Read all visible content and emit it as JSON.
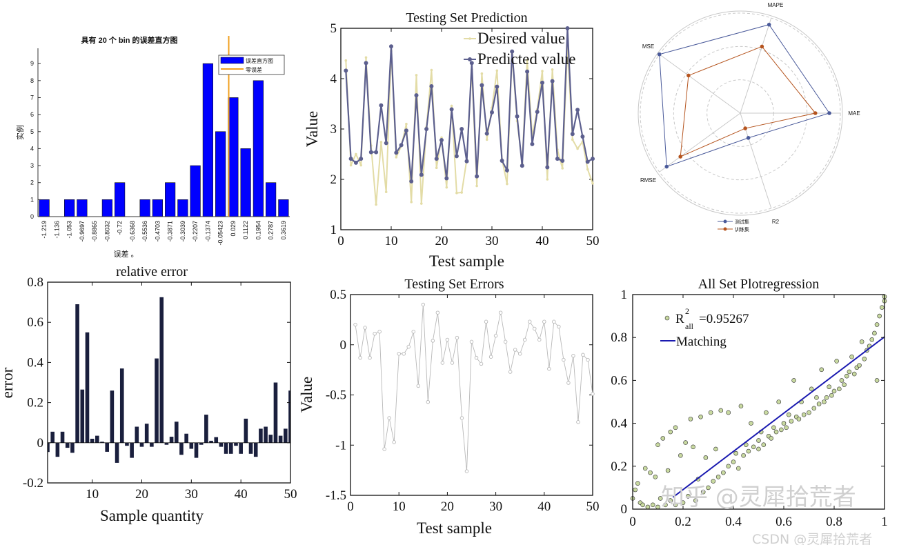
{
  "chart_data": [
    {
      "type": "bar",
      "title": "具有 20 个 bin 的误差直方图",
      "xlabel": "误差 。",
      "ylabel": "实例",
      "categories": [
        "-1.219",
        "-1.136",
        "-1.053",
        "-0.9697",
        "-0.8865",
        "-0.8032",
        "-0.72",
        "-0.6368",
        "-0.5536",
        "-0.4703",
        "-0.3871",
        "-0.3039",
        "-0.2207",
        "-0.1374",
        "-0.05423",
        "0.029",
        "0.1122",
        "0.1954",
        "0.2787",
        "0.3619"
      ],
      "values": [
        1,
        0,
        1,
        1,
        0,
        1,
        2,
        0,
        1,
        1,
        2,
        1,
        3,
        9,
        5,
        7,
        4,
        8,
        2,
        1
      ],
      "yticks": [
        "0",
        "1",
        "2",
        "3",
        "4",
        "5",
        "6",
        "7",
        "8",
        "9"
      ],
      "ylim": [
        0,
        9.9
      ],
      "zero_error": 0,
      "legend": [
        "误差直方图",
        "零误差"
      ],
      "legend_position": "top-right",
      "colors": {
        "bars": "#0000ff",
        "zero_line": "#f0a020"
      }
    },
    {
      "type": "line",
      "title": "Testing Set Prediction",
      "xlabel": "Test sample",
      "ylabel": "Value",
      "xlim": [
        0,
        50
      ],
      "ylim": [
        1,
        5
      ],
      "xticks": [
        "0",
        "10",
        "20",
        "30",
        "40",
        "50"
      ],
      "yticks": [
        "1",
        "2",
        "3",
        "4",
        "5"
      ],
      "legend_position": "top-right",
      "x": [
        1,
        2,
        3,
        4,
        5,
        6,
        7,
        8,
        9,
        10,
        11,
        12,
        13,
        14,
        15,
        16,
        17,
        18,
        19,
        20,
        21,
        22,
        23,
        24,
        25,
        26,
        27,
        28,
        29,
        30,
        31,
        32,
        33,
        34,
        35,
        36,
        37,
        38,
        39,
        40,
        41,
        42,
        43,
        44,
        45,
        46,
        47,
        48,
        49,
        50
      ],
      "series": [
        {
          "name": "Desired value",
          "color": "#e3dca6",
          "values": [
            4.36,
            2.28,
            2.5,
            2.28,
            4.42,
            2.67,
            1.5,
            2.74,
            1.75,
            4.55,
            2.44,
            2.66,
            3.1,
            1.55,
            4.07,
            1.52,
            3.04,
            4.17,
            2.23,
            2.83,
            1.84,
            3.46,
            1.73,
            1.74,
            2.39,
            4.18,
            1.87,
            4.1,
            2.79,
            3.42,
            4.16,
            2.4,
            1.91,
            4.49,
            3.16,
            2.32,
            4.37,
            2.86,
            3.39,
            4.15,
            2.0,
            4.18,
            2.59,
            2.22,
            4.62,
            2.79,
            2.61,
            2.75,
            2.2,
            1.92
          ]
        },
        {
          "name": "Predicted value",
          "color": "#5c5f8e",
          "values": [
            4.16,
            2.41,
            2.33,
            2.41,
            4.31,
            2.54,
            2.54,
            3.47,
            2.72,
            4.64,
            2.53,
            2.68,
            2.97,
            1.96,
            3.67,
            2.09,
            3.0,
            3.85,
            2.41,
            2.78,
            2.02,
            3.39,
            2.46,
            3.0,
            2.36,
            4.31,
            2.06,
            3.87,
            2.91,
            3.33,
            3.84,
            2.37,
            2.18,
            4.54,
            3.25,
            2.27,
            4.14,
            2.7,
            3.34,
            3.92,
            2.24,
            3.95,
            2.41,
            2.37,
            5.0,
            2.9,
            3.38,
            2.85,
            2.35,
            2.41
          ]
        }
      ]
    },
    {
      "type": "radar",
      "axes": [
        "MAE",
        "MAPE",
        "MSE",
        "RMSE",
        "R2"
      ],
      "rlim": [
        0,
        1
      ],
      "legend_position": "bottom",
      "series": [
        {
          "name": "测试集",
          "color": "#4a5a9a",
          "values": [
            0.89,
            0.93,
            1.0,
            0.91,
            0.26
          ]
        },
        {
          "name": "训练集",
          "color": "#b5541e",
          "values": [
            0.75,
            0.7,
            0.64,
            0.74,
            0.16
          ]
        }
      ]
    },
    {
      "type": "bar",
      "title": "relative error",
      "xlabel": "Sample quantity",
      "ylabel": "error",
      "xlim": [
        1,
        50
      ],
      "ylim": [
        -0.2,
        0.8
      ],
      "xticks": [
        "10",
        "20",
        "30",
        "40",
        "50"
      ],
      "yticks": [
        "-0.2",
        "0",
        "0.2",
        "0.4",
        "0.6",
        "0.8"
      ],
      "color": "#1a1f3d",
      "x": [
        1,
        2,
        3,
        4,
        5,
        6,
        7,
        8,
        9,
        10,
        11,
        12,
        13,
        14,
        15,
        16,
        17,
        18,
        19,
        20,
        21,
        22,
        23,
        24,
        25,
        26,
        27,
        28,
        29,
        30,
        31,
        32,
        33,
        34,
        35,
        36,
        37,
        38,
        39,
        40,
        41,
        42,
        43,
        44,
        45,
        46,
        47,
        48,
        49,
        50
      ],
      "values": [
        -0.046,
        0.055,
        -0.07,
        0.055,
        -0.025,
        -0.05,
        0.69,
        0.265,
        0.55,
        0.02,
        0.035,
        0.005,
        -0.045,
        0.26,
        -0.1,
        0.37,
        -0.015,
        -0.075,
        0.08,
        -0.02,
        0.095,
        -0.02,
        0.42,
        0.725,
        -0.01,
        0.03,
        0.105,
        -0.06,
        0.045,
        -0.03,
        -0.075,
        -0.01,
        0.14,
        0.01,
        0.028,
        -0.02,
        -0.055,
        -0.055,
        -0.015,
        -0.055,
        0.12,
        -0.055,
        -0.07,
        0.07,
        0.08,
        0.04,
        0.3,
        0.035,
        0.07,
        0.26
      ]
    },
    {
      "type": "line",
      "title": "Testing Set Errors",
      "xlabel": "Test sample",
      "ylabel": "Value",
      "xlim": [
        0,
        50
      ],
      "ylim": [
        -1.5,
        0.5
      ],
      "xticks": [
        "0",
        "10",
        "20",
        "30",
        "40",
        "50"
      ],
      "yticks": [
        "-1.5",
        "-1",
        "-0.5",
        "0",
        "0.5"
      ],
      "color": "#b8b8b8",
      "x": [
        1,
        2,
        3,
        4,
        5,
        6,
        7,
        8,
        9,
        10,
        11,
        12,
        13,
        14,
        15,
        16,
        17,
        18,
        19,
        20,
        21,
        22,
        23,
        24,
        25,
        26,
        27,
        28,
        29,
        30,
        31,
        32,
        33,
        34,
        35,
        36,
        37,
        38,
        39,
        40,
        41,
        42,
        43,
        44,
        45,
        46,
        47,
        48,
        49,
        50
      ],
      "values": [
        0.2,
        -0.13,
        0.17,
        -0.13,
        0.11,
        0.13,
        -1.04,
        -0.73,
        -0.97,
        -0.09,
        -0.09,
        -0.02,
        0.13,
        -0.41,
        0.4,
        -0.57,
        0.04,
        0.32,
        -0.18,
        0.05,
        -0.18,
        0.07,
        -0.73,
        -1.26,
        0.03,
        -0.13,
        -0.19,
        0.23,
        -0.12,
        0.09,
        0.32,
        0.03,
        -0.27,
        -0.05,
        -0.09,
        0.05,
        0.23,
        0.16,
        0.05,
        0.23,
        -0.24,
        0.23,
        0.18,
        -0.15,
        -0.38,
        -0.11,
        -0.77,
        -0.1,
        -0.15,
        -0.49
      ]
    },
    {
      "type": "scatter",
      "title": "All Set Plotregression",
      "xlim": [
        0,
        1
      ],
      "ylim": [
        0,
        1
      ],
      "xticks": [
        "0",
        "0.2",
        "0.4",
        "0.6",
        "0.8",
        "1"
      ],
      "yticks": [
        "0",
        "0.2",
        "0.4",
        "0.6",
        "0.8",
        "1"
      ],
      "legend_position": "top-left",
      "r2_label": {
        "base": "R",
        "sup": "2",
        "sub": "all",
        "value": "=0.95267"
      },
      "fit_label": "Matching",
      "fit_line": {
        "slope": 0.89,
        "intercept": -0.087,
        "x_range": [
          0.16,
          1.0
        ]
      },
      "colors": {
        "points": "#c8d9a0",
        "fit": "#1a1ab0"
      },
      "points": [
        [
          0,
          0.05
        ],
        [
          0.01,
          0.09
        ],
        [
          0.02,
          0.12
        ],
        [
          0.03,
          0.03
        ],
        [
          0.04,
          0.02
        ],
        [
          0.05,
          0.19
        ],
        [
          0.06,
          0.01
        ],
        [
          0.07,
          0.17
        ],
        [
          0.08,
          0.02
        ],
        [
          0.09,
          0.15
        ],
        [
          0.1,
          0.3
        ],
        [
          0.1,
          0.01
        ],
        [
          0.11,
          0.05
        ],
        [
          0.12,
          0.33
        ],
        [
          0.13,
          0.02
        ],
        [
          0.14,
          0.18
        ],
        [
          0.15,
          0.36
        ],
        [
          0.15,
          0.04
        ],
        [
          0.17,
          0.38
        ],
        [
          0.17,
          0.02
        ],
        [
          0.19,
          0.25
        ],
        [
          0.2,
          0.03
        ],
        [
          0.21,
          0.31
        ],
        [
          0.22,
          0.06
        ],
        [
          0.23,
          0.42
        ],
        [
          0.24,
          0.29
        ],
        [
          0.25,
          0.04
        ],
        [
          0.26,
          0.14
        ],
        [
          0.27,
          0.43
        ],
        [
          0.28,
          0.08
        ],
        [
          0.29,
          0.24
        ],
        [
          0.3,
          0.1
        ],
        [
          0.31,
          0.45
        ],
        [
          0.32,
          0.13
        ],
        [
          0.33,
          0.28
        ],
        [
          0.34,
          0.15
        ],
        [
          0.35,
          0.46
        ],
        [
          0.36,
          0.17
        ],
        [
          0.38,
          0.45
        ],
        [
          0.38,
          0.2
        ],
        [
          0.4,
          0.22
        ],
        [
          0.41,
          0.26
        ],
        [
          0.42,
          0.19
        ],
        [
          0.43,
          0.48
        ],
        [
          0.44,
          0.25
        ],
        [
          0.45,
          0.3
        ],
        [
          0.46,
          0.27
        ],
        [
          0.47,
          0.4
        ],
        [
          0.48,
          0.29
        ],
        [
          0.5,
          0.32
        ],
        [
          0.5,
          0.28
        ],
        [
          0.51,
          0.36
        ],
        [
          0.52,
          0.3
        ],
        [
          0.53,
          0.45
        ],
        [
          0.54,
          0.34
        ],
        [
          0.55,
          0.33
        ],
        [
          0.56,
          0.38
        ],
        [
          0.57,
          0.36
        ],
        [
          0.58,
          0.5
        ],
        [
          0.59,
          0.37
        ],
        [
          0.6,
          0.4
        ],
        [
          0.61,
          0.38
        ],
        [
          0.62,
          0.44
        ],
        [
          0.63,
          0.41
        ],
        [
          0.64,
          0.6
        ],
        [
          0.65,
          0.43
        ],
        [
          0.66,
          0.42
        ],
        [
          0.67,
          0.5
        ],
        [
          0.68,
          0.44
        ],
        [
          0.7,
          0.45
        ],
        [
          0.71,
          0.56
        ],
        [
          0.72,
          0.47
        ],
        [
          0.73,
          0.52
        ],
        [
          0.74,
          0.49
        ],
        [
          0.75,
          0.65
        ],
        [
          0.76,
          0.5
        ],
        [
          0.77,
          0.52
        ],
        [
          0.78,
          0.57
        ],
        [
          0.79,
          0.53
        ],
        [
          0.8,
          0.55
        ],
        [
          0.81,
          0.69
        ],
        [
          0.82,
          0.56
        ],
        [
          0.83,
          0.6
        ],
        [
          0.84,
          0.58
        ],
        [
          0.85,
          0.62
        ],
        [
          0.86,
          0.64
        ],
        [
          0.87,
          0.71
        ],
        [
          0.88,
          0.63
        ],
        [
          0.89,
          0.66
        ],
        [
          0.9,
          0.67
        ],
        [
          0.91,
          0.78
        ],
        [
          0.92,
          0.7
        ],
        [
          0.93,
          0.74
        ],
        [
          0.94,
          0.76
        ],
        [
          0.95,
          0.79
        ],
        [
          0.96,
          0.82
        ],
        [
          0.97,
          0.86
        ],
        [
          0.98,
          0.9
        ],
        [
          0.99,
          0.94
        ],
        [
          0.97,
          0.6
        ],
        [
          1.0,
          0.99
        ],
        [
          1.0,
          0.97
        ]
      ]
    }
  ],
  "watermarks": {
    "zhihu": "知乎 @灵犀拾荒者",
    "csdn": "CSDN @灵犀拾荒者"
  }
}
